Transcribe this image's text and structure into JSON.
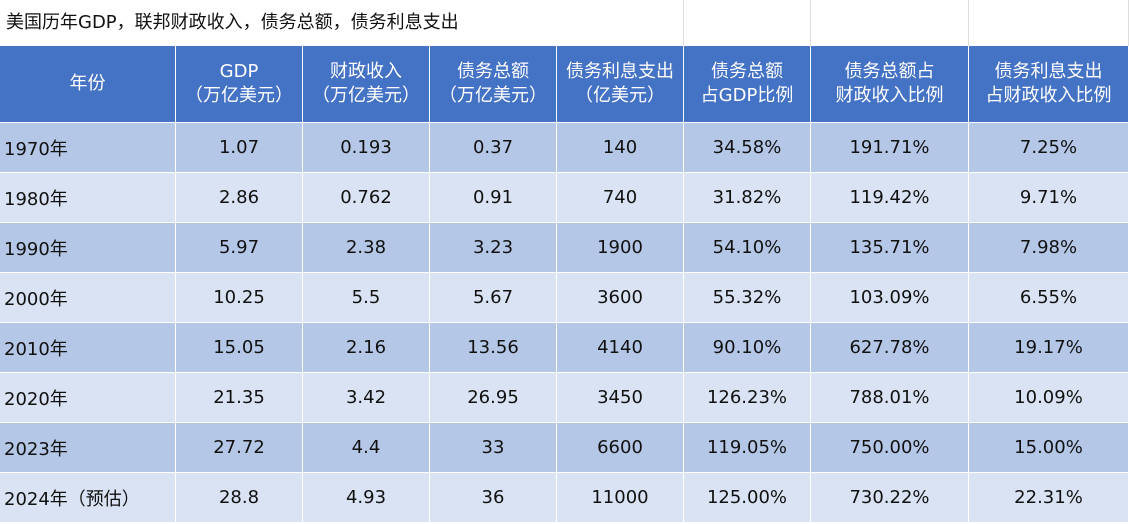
{
  "title": "美国历年GDP，联邦财政收入，债务总额，债务利息支出",
  "table": {
    "headers": [
      [
        "年份"
      ],
      [
        "GDP",
        "（万亿美元）"
      ],
      [
        "财政收入",
        "（万亿美元）"
      ],
      [
        "债务总额",
        "（万亿美元）"
      ],
      [
        "债务利息支出",
        "（亿美元）"
      ],
      [
        "债务总额",
        "占GDP比例"
      ],
      [
        "债务总额占",
        "财政收入比例"
      ],
      [
        "债务利息支出",
        "占财政收入比例"
      ]
    ],
    "rows": [
      [
        "1970年",
        "1.07",
        "0.193",
        "0.37",
        "140",
        "34.58%",
        "191.71%",
        "7.25%"
      ],
      [
        "1980年",
        "2.86",
        "0.762",
        "0.91",
        "740",
        "31.82%",
        "119.42%",
        "9.71%"
      ],
      [
        "1990年",
        "5.97",
        "2.38",
        "3.23",
        "1900",
        "54.10%",
        "135.71%",
        "7.98%"
      ],
      [
        "2000年",
        "10.25",
        "5.5",
        "5.67",
        "3600",
        "55.32%",
        "103.09%",
        "6.55%"
      ],
      [
        "2010年",
        "15.05",
        "2.16",
        "13.56",
        "4140",
        "90.10%",
        "627.78%",
        "19.17%"
      ],
      [
        "2020年",
        "21.35",
        "3.42",
        "26.95",
        "3450",
        "126.23%",
        "788.01%",
        "10.09%"
      ],
      [
        "2023年",
        "27.72",
        "4.4",
        "33",
        "6600",
        "119.05%",
        "750.00%",
        "15.00%"
      ],
      [
        "2024年（预估）",
        "28.8",
        "4.93",
        "36",
        "11000",
        "125.00%",
        "730.22%",
        "22.31%"
      ]
    ]
  }
}
